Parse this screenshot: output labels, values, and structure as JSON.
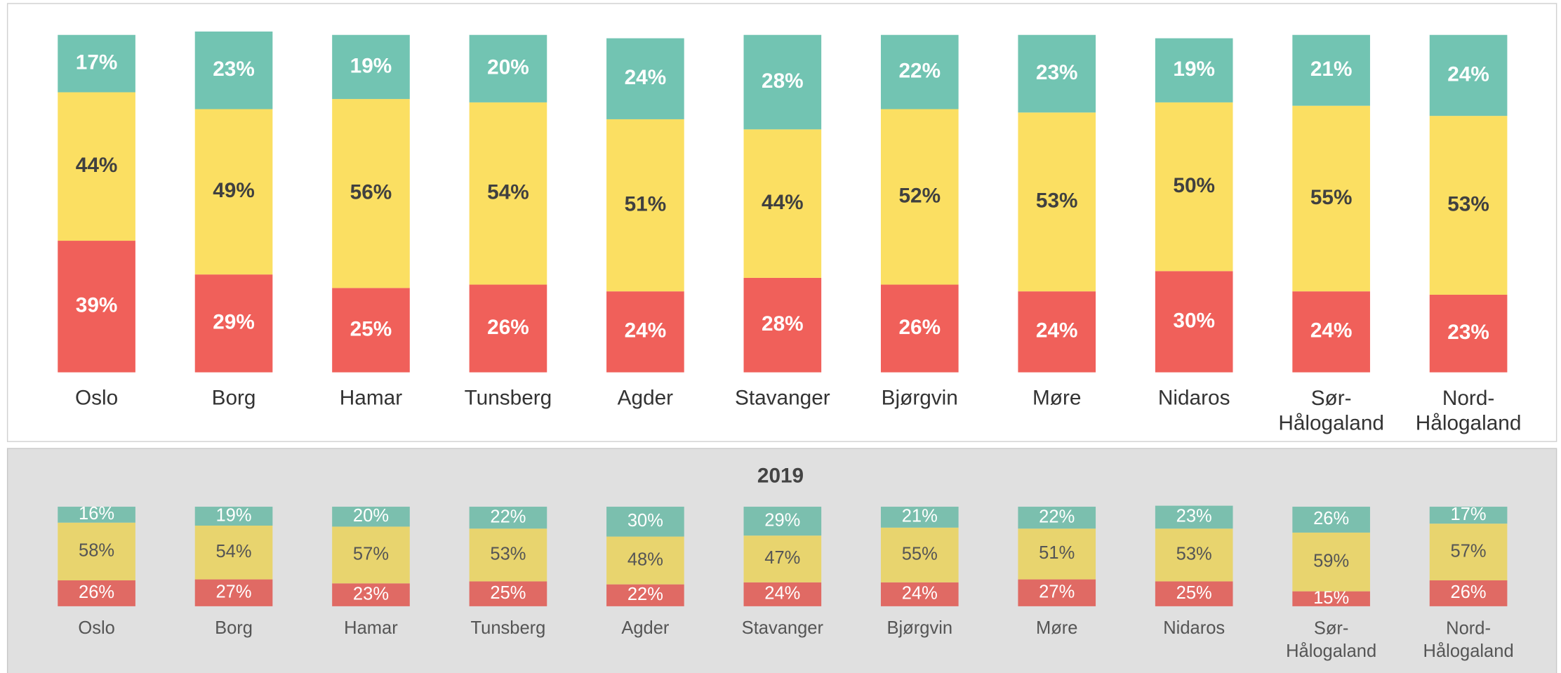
{
  "chart_data": [
    {
      "type": "stacked-bar",
      "categories": [
        "Oslo",
        "Borg",
        "Hamar",
        "Tunsberg",
        "Agder",
        "Stavanger",
        "Bjørgvin",
        "Møre",
        "Nidaros",
        "Sør-Hålogaland",
        "Nord-Hålogaland"
      ],
      "ylim": [
        0,
        100
      ],
      "series": [
        {
          "color": "#f0605a",
          "label_color": "#ffffff",
          "values": [
            39,
            29,
            25,
            26,
            24,
            28,
            26,
            24,
            30,
            24,
            23
          ],
          "value_labels": [
            "39%",
            "29%",
            "25%",
            "26%",
            "24%",
            "28%",
            "26%",
            "24%",
            "30%",
            "24%",
            "23%"
          ]
        },
        {
          "color": "#fbdf62",
          "label_color": "#404040",
          "values": [
            44,
            49,
            56,
            54,
            51,
            44,
            52,
            53,
            50,
            55,
            53
          ],
          "value_labels": [
            "44%",
            "49%",
            "56%",
            "54%",
            "51%",
            "44%",
            "52%",
            "53%",
            "50%",
            "55%",
            "53%"
          ]
        },
        {
          "color": "#72c4b2",
          "label_color": "#ffffff",
          "values": [
            17,
            23,
            19,
            20,
            24,
            28,
            22,
            23,
            19,
            21,
            24
          ],
          "value_labels": [
            "17%",
            "23%",
            "19%",
            "20%",
            "24%",
            "28%",
            "22%",
            "23%",
            "19%",
            "21%",
            "24%"
          ]
        }
      ]
    },
    {
      "type": "stacked-bar",
      "title": "2019",
      "categories": [
        "Oslo",
        "Borg",
        "Hamar",
        "Tunsberg",
        "Agder",
        "Stavanger",
        "Bjørgvin",
        "Møre",
        "Nidaros",
        "Sør-Hålogaland",
        "Nord-Hålogaland"
      ],
      "ylim": [
        0,
        100
      ],
      "series": [
        {
          "color": "#e06a64",
          "label_color": "#ffffff",
          "values": [
            26,
            27,
            23,
            25,
            22,
            24,
            24,
            27,
            25,
            15,
            26
          ],
          "value_labels": [
            "26%",
            "27%",
            "23%",
            "25%",
            "22%",
            "24%",
            "24%",
            "27%",
            "25%",
            "15%",
            "26%"
          ]
        },
        {
          "color": "#e8d46e",
          "label_color": "#555555",
          "values": [
            58,
            54,
            57,
            53,
            48,
            47,
            55,
            51,
            53,
            59,
            57
          ],
          "value_labels": [
            "58%",
            "54%",
            "57%",
            "53%",
            "48%",
            "47%",
            "55%",
            "51%",
            "53%",
            "59%",
            "57%"
          ]
        },
        {
          "color": "#7bbfae",
          "label_color": "#ffffff",
          "values": [
            16,
            19,
            20,
            22,
            30,
            29,
            21,
            22,
            23,
            26,
            17
          ],
          "value_labels": [
            "16%",
            "19%",
            "20%",
            "22%",
            "30%",
            "29%",
            "21%",
            "22%",
            "23%",
            "26%",
            "17%"
          ]
        }
      ]
    }
  ]
}
